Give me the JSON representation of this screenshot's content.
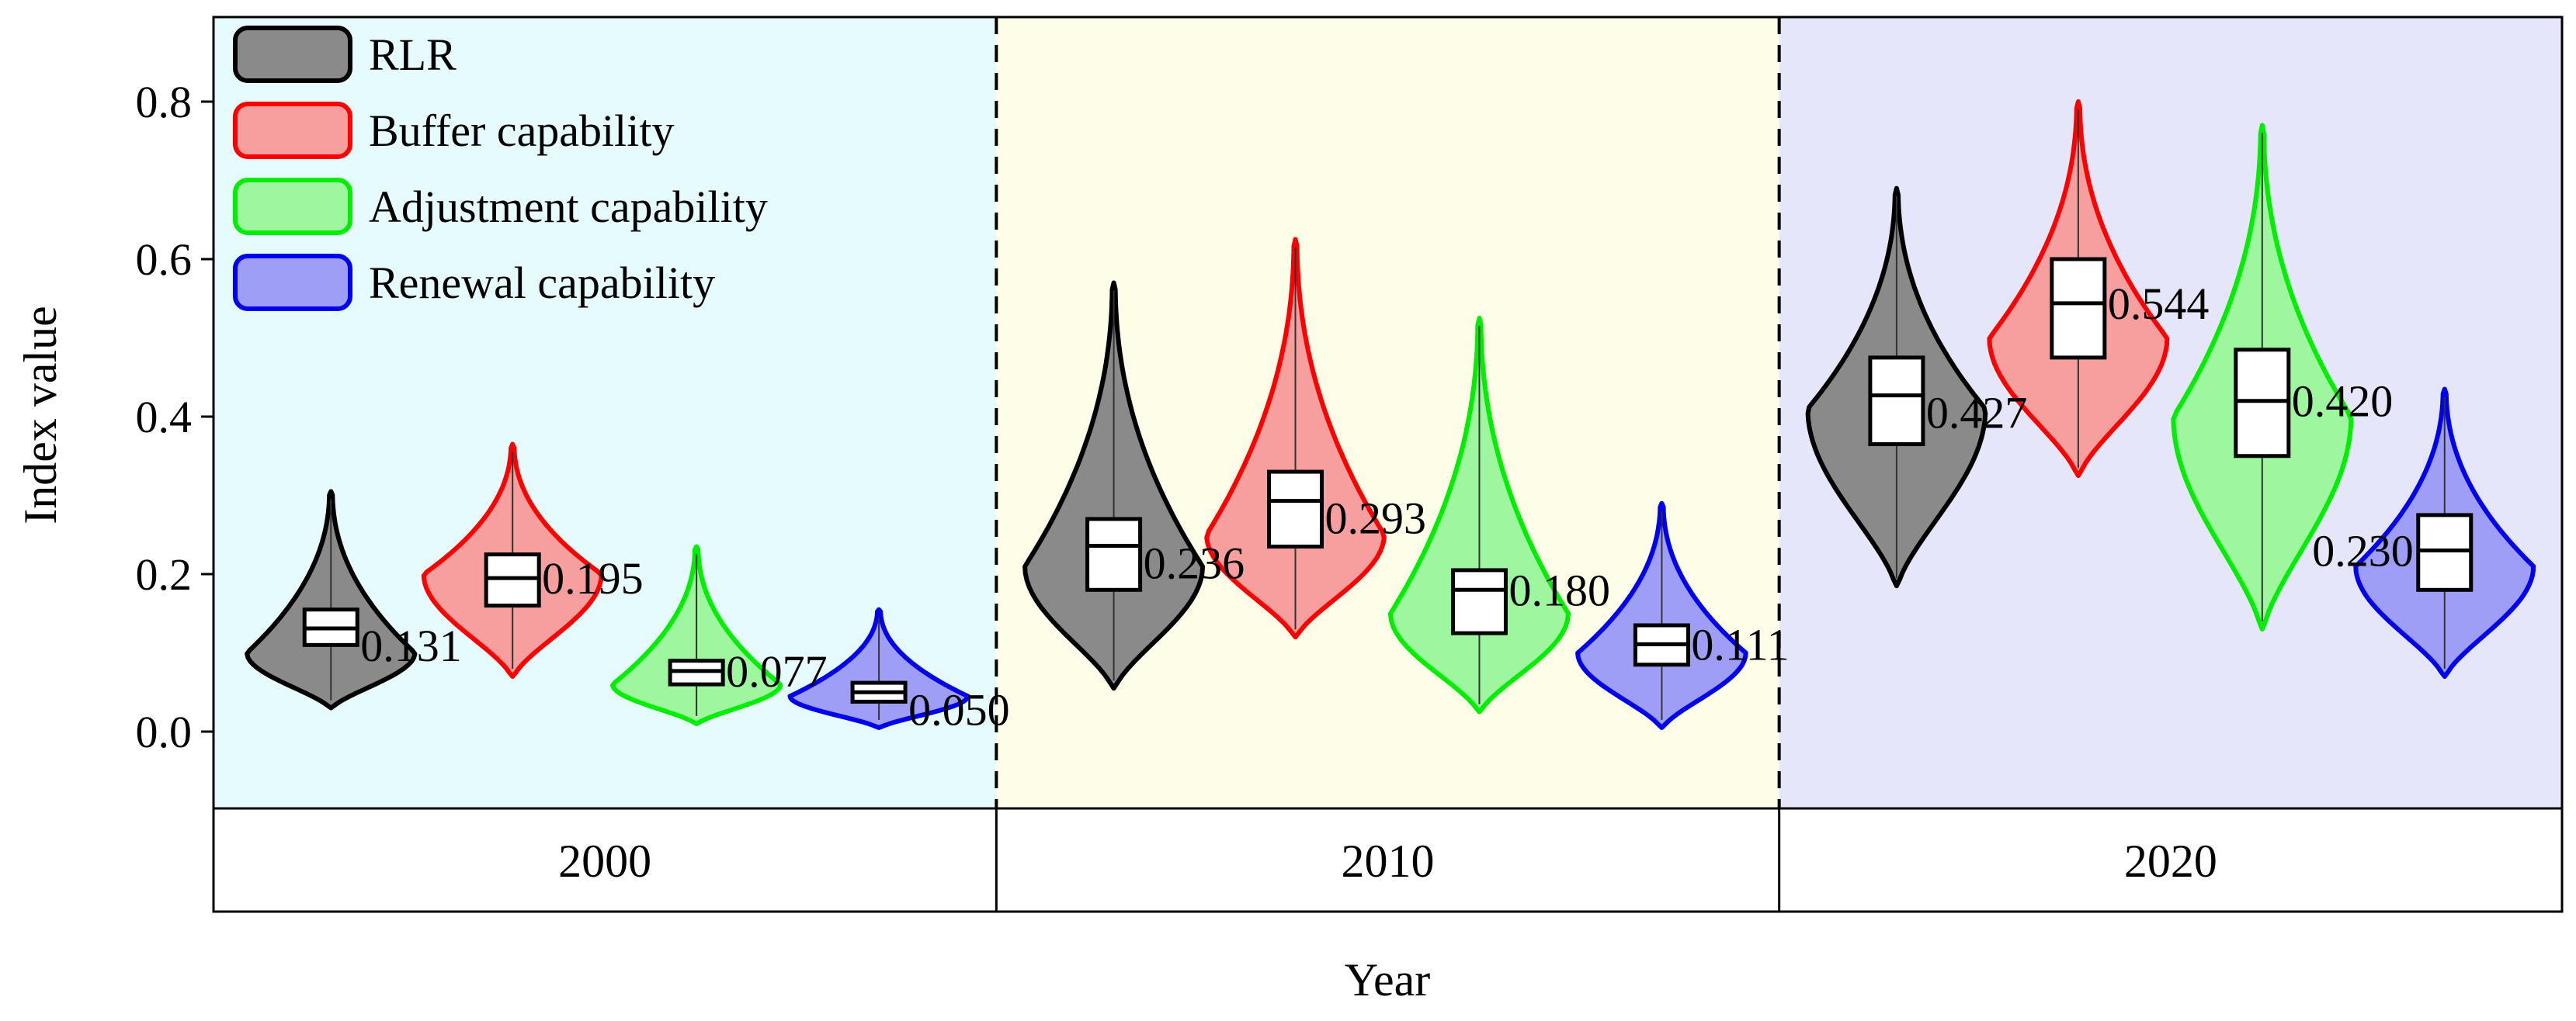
{
  "chart_data": {
    "type": "violin",
    "title": "",
    "xlabel": "Year",
    "ylabel": "Index value",
    "ylim": [
      -0.1,
      0.9
    ],
    "yticks": [
      0.0,
      0.2,
      0.4,
      0.6,
      0.8
    ],
    "ytick_labels": [
      "0.0",
      "0.2",
      "0.4",
      "0.6",
      "0.8"
    ],
    "legend_position": "top-left",
    "series": [
      {
        "name": "RLR",
        "color": "#000000",
        "fill": "#8a8a8a"
      },
      {
        "name": "Buffer capability",
        "color": "#ff0000",
        "fill": "#f79e9e"
      },
      {
        "name": "Adjustment capability",
        "color": "#00ee00",
        "fill": "#9ef79e"
      },
      {
        "name": "Renewal capability",
        "color": "#0000ee",
        "fill": "#9e9ef7"
      }
    ],
    "panels": [
      {
        "year": "2000",
        "background": "#e5fbfd",
        "violins": [
          {
            "series": "RLR",
            "label": "0.131",
            "median": 0.131,
            "q1": 0.11,
            "q3": 0.155,
            "min": 0.03,
            "max": 0.305,
            "mode": 0.1,
            "width": 0.85,
            "label_pos": "below-right"
          },
          {
            "series": "Buffer capability",
            "label": "0.195",
            "median": 0.195,
            "q1": 0.16,
            "q3": 0.225,
            "min": 0.07,
            "max": 0.365,
            "mode": 0.2,
            "width": 0.9,
            "label_pos": "right"
          },
          {
            "series": "Adjustment capability",
            "label": "0.077",
            "median": 0.077,
            "q1": 0.06,
            "q3": 0.09,
            "min": 0.01,
            "max": 0.235,
            "mode": 0.06,
            "width": 0.85,
            "label_pos": "right"
          },
          {
            "series": "Renewal capability",
            "label": "0.050",
            "median": 0.05,
            "q1": 0.038,
            "q3": 0.062,
            "min": 0.005,
            "max": 0.155,
            "mode": 0.045,
            "width": 0.9,
            "label_pos": "below-right"
          }
        ]
      },
      {
        "year": "2010",
        "background": "#fdfde8",
        "violins": [
          {
            "series": "RLR",
            "label": "0.236",
            "median": 0.236,
            "q1": 0.18,
            "q3": 0.27,
            "min": 0.055,
            "max": 0.57,
            "mode": 0.21,
            "width": 0.9,
            "label_pos": "below-right"
          },
          {
            "series": "Buffer capability",
            "label": "0.293",
            "median": 0.293,
            "q1": 0.235,
            "q3": 0.33,
            "min": 0.12,
            "max": 0.625,
            "mode": 0.25,
            "width": 0.9,
            "label_pos": "below-right"
          },
          {
            "series": "Adjustment capability",
            "label": "0.180",
            "median": 0.18,
            "q1": 0.125,
            "q3": 0.205,
            "min": 0.025,
            "max": 0.525,
            "mode": 0.15,
            "width": 0.9,
            "label_pos": "right"
          },
          {
            "series": "Renewal capability",
            "label": "0.111",
            "median": 0.111,
            "q1": 0.085,
            "q3": 0.135,
            "min": 0.005,
            "max": 0.29,
            "mode": 0.1,
            "width": 0.85,
            "label_pos": "right"
          }
        ]
      },
      {
        "year": "2020",
        "background": "#e6e6fb",
        "violins": [
          {
            "series": "RLR",
            "label": "0.427",
            "median": 0.427,
            "q1": 0.365,
            "q3": 0.475,
            "min": 0.185,
            "max": 0.69,
            "mode": 0.41,
            "width": 0.9,
            "label_pos": "below-right"
          },
          {
            "series": "Buffer capability",
            "label": "0.544",
            "median": 0.544,
            "q1": 0.475,
            "q3": 0.6,
            "min": 0.325,
            "max": 0.8,
            "mode": 0.5,
            "width": 0.9,
            "label_pos": "right"
          },
          {
            "series": "Adjustment capability",
            "label": "0.420",
            "median": 0.42,
            "q1": 0.35,
            "q3": 0.485,
            "min": 0.13,
            "max": 0.77,
            "mode": 0.4,
            "width": 0.9,
            "label_pos": "right"
          },
          {
            "series": "Renewal capability",
            "label": "0.230",
            "median": 0.23,
            "q1": 0.18,
            "q3": 0.275,
            "min": 0.07,
            "max": 0.435,
            "mode": 0.21,
            "width": 0.9,
            "label_pos": "left"
          }
        ]
      }
    ]
  }
}
